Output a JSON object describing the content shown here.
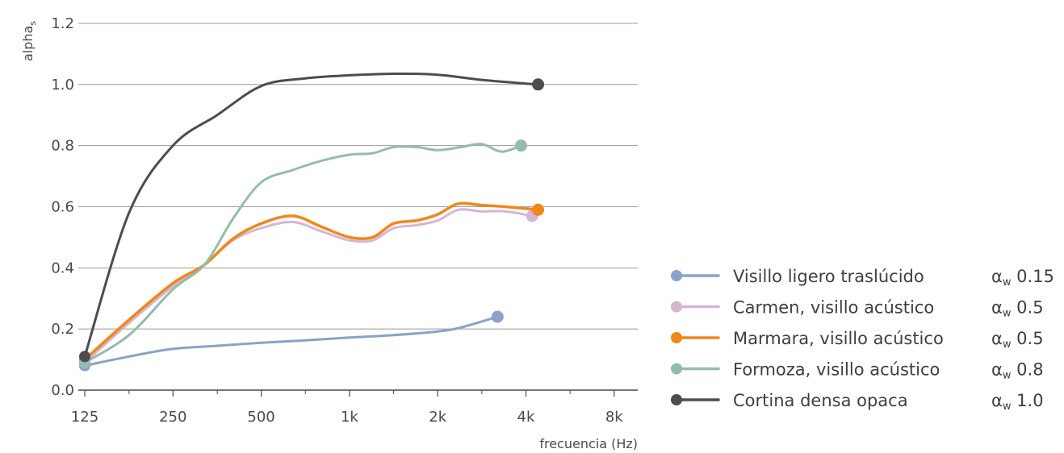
{
  "chart_data": {
    "type": "line",
    "ylabel": "alpha",
    "ylabel_subscript": "s",
    "xlabel": "frecuencia (Hz)",
    "x_scale": "log2",
    "x_ticks": [
      125,
      250,
      500,
      1000,
      2000,
      4000,
      8000
    ],
    "x_tick_labels": [
      "125",
      "250",
      "500",
      "1k",
      "2k",
      "4k",
      "8k"
    ],
    "x_minor_ticks": [
      177,
      354,
      707,
      1414,
      2828,
      5657
    ],
    "ylim": [
      0,
      1.2
    ],
    "y_ticks": [
      0.0,
      0.2,
      0.4,
      0.6,
      0.8,
      1.0,
      1.2
    ],
    "y_tick_labels": [
      "0.0",
      "0.2",
      "0.4",
      "0.6",
      "0.8",
      "1.0",
      "1.2"
    ],
    "grid": "horizontal",
    "legend_position": "right",
    "series": [
      {
        "name": "Visillo ligero traslúcido",
        "rating": "αw 0.15",
        "color": "#8aa2c8",
        "points": [
          [
            125,
            0.08
          ],
          [
            177,
            0.11
          ],
          [
            250,
            0.135
          ],
          [
            354,
            0.145
          ],
          [
            500,
            0.155
          ],
          [
            707,
            0.163
          ],
          [
            1000,
            0.172
          ],
          [
            1414,
            0.18
          ],
          [
            2000,
            0.192
          ],
          [
            2400,
            0.205
          ],
          [
            3200,
            0.24
          ]
        ]
      },
      {
        "name": "Carmen, visillo acústico",
        "rating": "αw 0.5",
        "color": "#d6b5d3",
        "points": [
          [
            125,
            0.09
          ],
          [
            177,
            0.22
          ],
          [
            250,
            0.34
          ],
          [
            320,
            0.41
          ],
          [
            400,
            0.49
          ],
          [
            500,
            0.53
          ],
          [
            640,
            0.55
          ],
          [
            800,
            0.52
          ],
          [
            1000,
            0.49
          ],
          [
            1200,
            0.49
          ],
          [
            1414,
            0.53
          ],
          [
            1700,
            0.54
          ],
          [
            2000,
            0.555
          ],
          [
            2350,
            0.59
          ],
          [
            2828,
            0.585
          ],
          [
            3400,
            0.585
          ],
          [
            4200,
            0.57
          ]
        ]
      },
      {
        "name": "Marmara, visillo acústico",
        "rating": "αw 0.5",
        "color": "#f0871a",
        "points": [
          [
            125,
            0.1
          ],
          [
            177,
            0.23
          ],
          [
            250,
            0.35
          ],
          [
            320,
            0.41
          ],
          [
            400,
            0.495
          ],
          [
            500,
            0.545
          ],
          [
            640,
            0.57
          ],
          [
            800,
            0.535
          ],
          [
            1000,
            0.5
          ],
          [
            1200,
            0.5
          ],
          [
            1414,
            0.545
          ],
          [
            1700,
            0.555
          ],
          [
            2000,
            0.575
          ],
          [
            2350,
            0.61
          ],
          [
            2828,
            0.605
          ],
          [
            3400,
            0.6
          ],
          [
            4400,
            0.59
          ]
        ]
      },
      {
        "name": "Formoza, visillo acústico",
        "rating": "αw 0.8",
        "color": "#94bcae",
        "points": [
          [
            125,
            0.09
          ],
          [
            177,
            0.18
          ],
          [
            250,
            0.33
          ],
          [
            320,
            0.41
          ],
          [
            400,
            0.56
          ],
          [
            500,
            0.68
          ],
          [
            640,
            0.72
          ],
          [
            800,
            0.75
          ],
          [
            1000,
            0.77
          ],
          [
            1200,
            0.775
          ],
          [
            1414,
            0.795
          ],
          [
            1700,
            0.795
          ],
          [
            2000,
            0.785
          ],
          [
            2400,
            0.795
          ],
          [
            2828,
            0.805
          ],
          [
            3300,
            0.78
          ],
          [
            3850,
            0.8
          ]
        ]
      },
      {
        "name": "Cortina densa opaca",
        "rating": "αw 1.0",
        "color": "#4d4d4d",
        "points": [
          [
            125,
            0.11
          ],
          [
            177,
            0.58
          ],
          [
            250,
            0.8
          ],
          [
            354,
            0.9
          ],
          [
            500,
            0.995
          ],
          [
            707,
            1.02
          ],
          [
            1000,
            1.03
          ],
          [
            1414,
            1.035
          ],
          [
            2000,
            1.032
          ],
          [
            2828,
            1.015
          ],
          [
            4400,
            1.0
          ]
        ]
      }
    ]
  }
}
